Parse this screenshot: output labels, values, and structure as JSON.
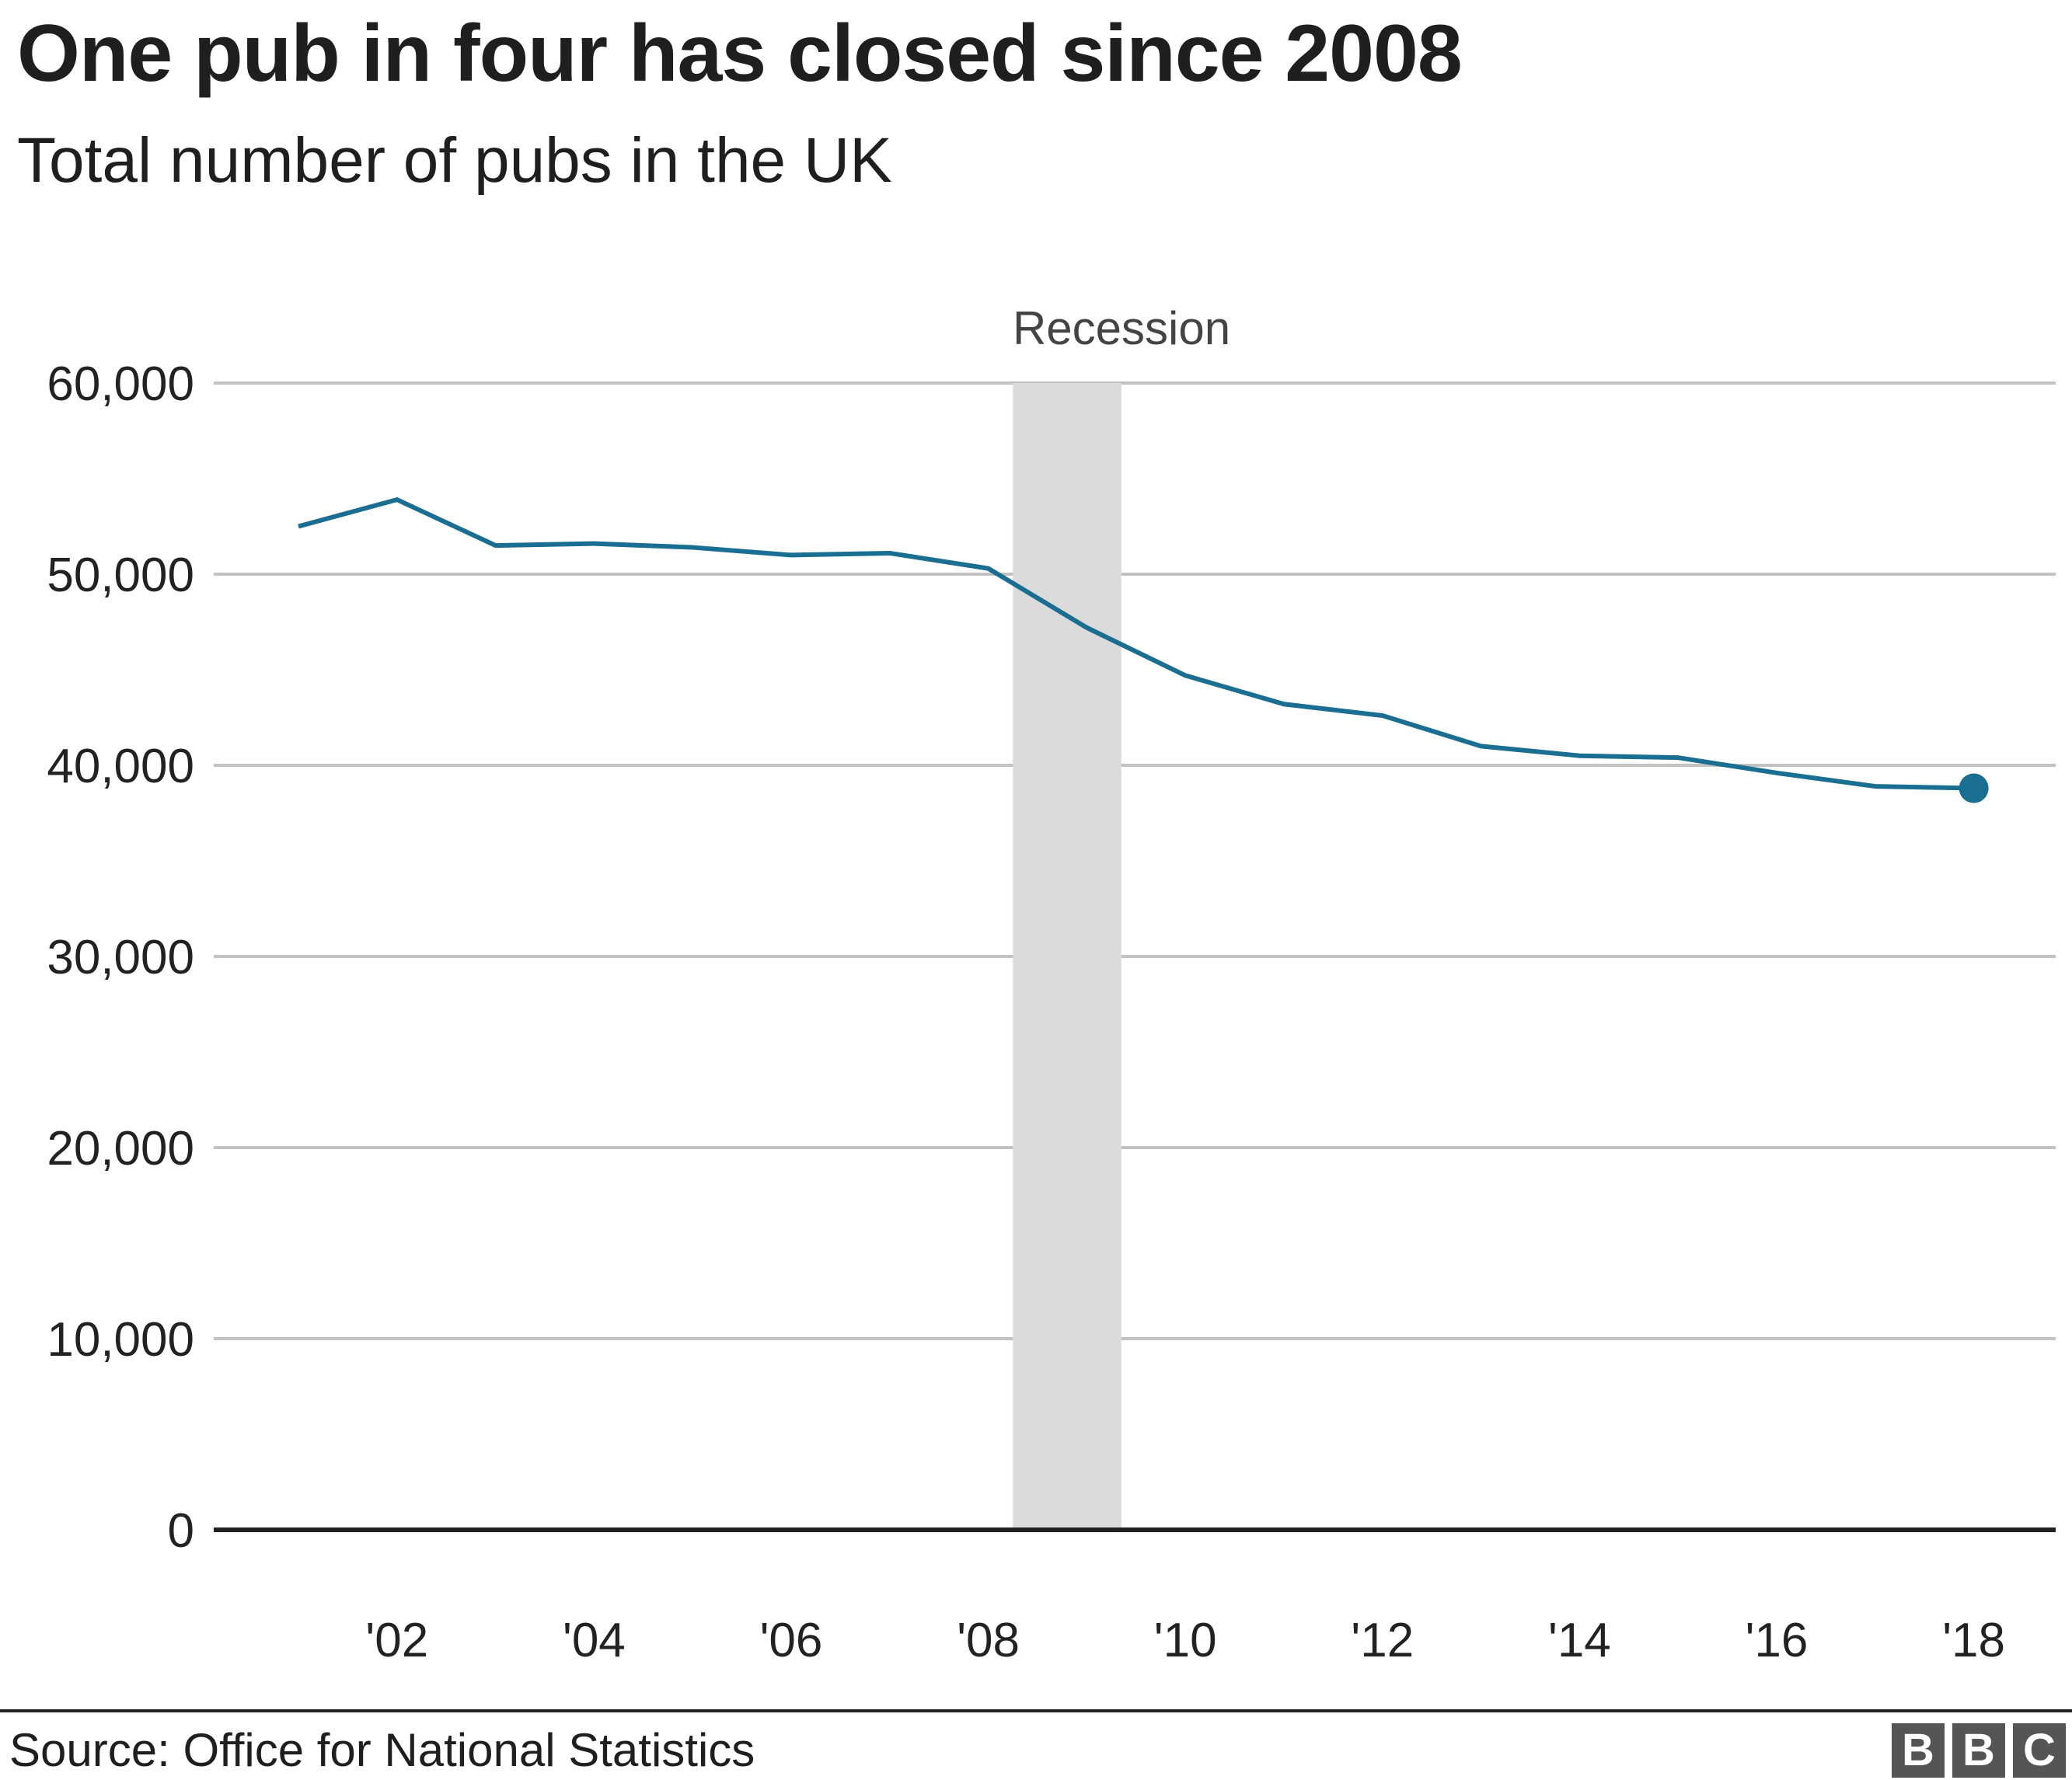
{
  "header": {
    "title": "One pub in four has closed since 2008",
    "subtitle": "Total number of pubs in the UK"
  },
  "annotation": {
    "recession_label": "Recession"
  },
  "footer": {
    "source": "Source: Office for National Statistics",
    "logo": [
      "B",
      "B",
      "C"
    ]
  },
  "colors": {
    "line": "#1a6e92",
    "recession": "#dbdbdb",
    "grid": "#c2c2c2",
    "axis": "#222222",
    "logo": "#555555"
  },
  "chart_data": {
    "type": "line",
    "title": "One pub in four has closed since 2008",
    "subtitle": "Total number of pubs in the UK",
    "xlabel": "",
    "ylabel": "",
    "ylim": [
      0,
      60000
    ],
    "yticks": [
      "0",
      "10,000",
      "20,000",
      "30,000",
      "40,000",
      "50,000",
      "60,000"
    ],
    "xticks": [
      "'02",
      "'04",
      "'06",
      "'08",
      "'10",
      "'12",
      "'14",
      "'16",
      "'18"
    ],
    "grid": true,
    "annotations": [
      {
        "label": "Recession",
        "x_start": 2008.25,
        "x_end": 2009.35,
        "type": "shaded-band"
      }
    ],
    "x": [
      2001,
      2002,
      2003,
      2004,
      2005,
      2006,
      2007,
      2008,
      2009,
      2010,
      2011,
      2012,
      2013,
      2014,
      2015,
      2016,
      2017,
      2018
    ],
    "series": [
      {
        "name": "Total pubs",
        "values": [
          52500,
          53900,
          51500,
          51600,
          51400,
          51000,
          51100,
          50300,
          47200,
          44700,
          43200,
          42600,
          41000,
          40500,
          40400,
          39600,
          38900,
          38800
        ]
      }
    ],
    "source": "Office for National Statistics"
  }
}
